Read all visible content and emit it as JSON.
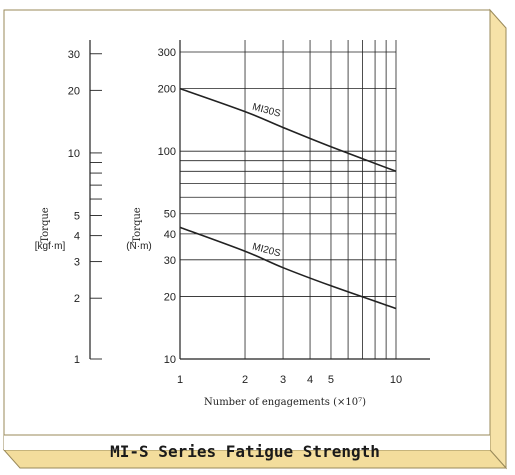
{
  "caption": "MI-S Series Fatigue Strength",
  "colors": {
    "frame_fill": "#fbefc8",
    "frame_stroke": "#9a8a5a",
    "ink": "#222222",
    "caption_band": "#fff8e0"
  },
  "chart_data": {
    "type": "line",
    "title": "",
    "xscale": "log",
    "yscale": "log",
    "xlim": [
      1,
      10
    ],
    "ylim_nm": [
      10,
      300
    ],
    "xlabel": "Number of engagements (×10⁷)",
    "x_ticks": [
      "1",
      "2",
      "3",
      "4",
      "5",
      "10"
    ],
    "left_axis": {
      "title": "Torque",
      "unit": "[kgf·m]",
      "tick_labels": [
        "1",
        "2",
        "3",
        "4",
        "5",
        "10",
        "20",
        "30"
      ]
    },
    "right_axis": {
      "title": "Torque",
      "unit": "(N·m)",
      "tick_labels": [
        "10",
        "20",
        "30",
        "40",
        "50",
        "100",
        "200",
        "300"
      ]
    },
    "grid": true,
    "series": [
      {
        "name": "MI30S",
        "x": [
          1,
          2,
          3,
          5,
          10
        ],
        "y": [
          200,
          155,
          130,
          105,
          80
        ]
      },
      {
        "name": "MI20S",
        "x": [
          1,
          2,
          3,
          5,
          10
        ],
        "y": [
          43,
          33,
          27.5,
          22.5,
          17.5
        ]
      }
    ]
  }
}
